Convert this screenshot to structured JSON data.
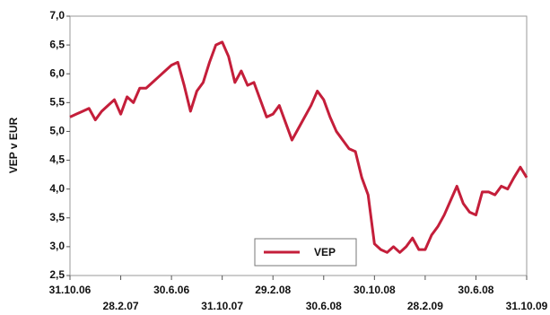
{
  "chart_data": {
    "type": "line",
    "y_label": "VEP v EUR",
    "categories": [
      "31.10.06",
      null,
      null,
      null,
      null,
      null,
      null,
      null,
      "28.2.07",
      null,
      null,
      null,
      null,
      null,
      null,
      null,
      "30.6.06",
      null,
      null,
      null,
      null,
      null,
      null,
      null,
      "31.10.07",
      null,
      null,
      null,
      null,
      null,
      null,
      null,
      "29.2.08",
      null,
      null,
      null,
      null,
      null,
      null,
      null,
      "30.6.08",
      null,
      null,
      null,
      null,
      null,
      null,
      null,
      "30.10.08",
      null,
      null,
      null,
      null,
      null,
      null,
      null,
      "28.2.09",
      null,
      null,
      null,
      null,
      null,
      null,
      null,
      "30.6.08",
      null,
      null,
      null,
      null,
      null,
      null,
      null,
      "31.10.09"
    ],
    "series": [
      {
        "name": "VEP",
        "color": "#c41e3a",
        "values": [
          5.25,
          5.3,
          5.35,
          5.4,
          5.2,
          5.35,
          5.45,
          5.55,
          5.3,
          5.6,
          5.5,
          5.75,
          5.75,
          5.85,
          5.95,
          6.05,
          6.15,
          6.2,
          5.8,
          5.35,
          5.7,
          5.85,
          6.2,
          6.5,
          6.55,
          6.3,
          5.85,
          6.05,
          5.8,
          5.85,
          5.55,
          5.25,
          5.3,
          5.45,
          5.15,
          4.85,
          5.05,
          5.25,
          5.45,
          5.7,
          5.55,
          5.25,
          5.0,
          4.85,
          4.7,
          4.65,
          4.2,
          3.9,
          3.05,
          2.95,
          2.9,
          3.0,
          2.9,
          3.0,
          3.15,
          2.95,
          2.95,
          3.2,
          3.35,
          3.55,
          3.8,
          4.05,
          3.75,
          3.6,
          3.55,
          3.95,
          3.95,
          3.9,
          4.05,
          4.0,
          4.2,
          4.38,
          4.2
        ]
      }
    ],
    "ylim": [
      2.5,
      7.0
    ],
    "yticks": [
      {
        "value": 2.5,
        "label": "2,5"
      },
      {
        "value": 3.0,
        "label": "3,0"
      },
      {
        "value": 3.5,
        "label": "3,5"
      },
      {
        "value": 4.0,
        "label": "4,0"
      },
      {
        "value": 4.5,
        "label": "4,5"
      },
      {
        "value": 5.0,
        "label": "5,0"
      },
      {
        "value": 5.5,
        "label": "5,5"
      },
      {
        "value": 6.0,
        "label": "6,0"
      },
      {
        "value": 6.5,
        "label": "6,5"
      },
      {
        "value": 7.0,
        "label": "7,0"
      }
    ],
    "grid": false,
    "legend": "bottom"
  }
}
